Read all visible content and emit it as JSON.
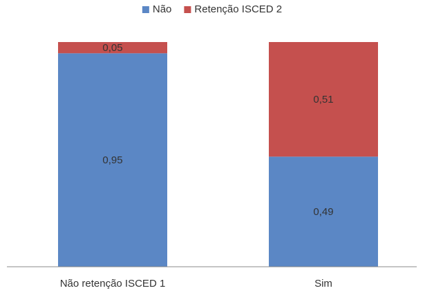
{
  "chart_data": {
    "type": "bar",
    "stacked": true,
    "categories": [
      "Não retenção ISCED 1",
      "Sim"
    ],
    "series": [
      {
        "name": "Não",
        "values": [
          0.95,
          0.49
        ],
        "labels": [
          "0,95",
          "0,49"
        ],
        "color": "#5b87c5"
      },
      {
        "name": "Retenção ISCED 2",
        "values": [
          0.05,
          0.51
        ],
        "labels": [
          "0,05",
          "0,51"
        ],
        "color": "#c5504e"
      }
    ],
    "ylim": [
      0,
      1
    ],
    "grid": false,
    "legend_position": "top-center",
    "title": "",
    "xlabel": "",
    "ylabel": ""
  }
}
